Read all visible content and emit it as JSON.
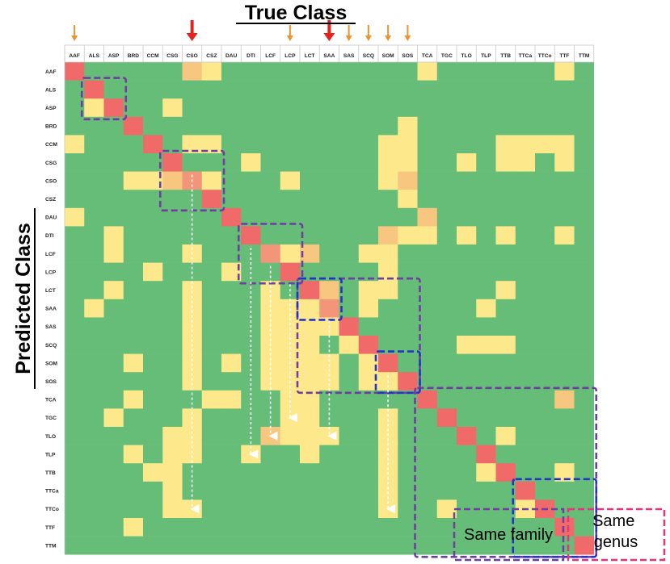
{
  "chart_data": {
    "type": "heatmap",
    "title": "True Class",
    "xlabel": "True Class",
    "ylabel": "Predicted Class",
    "categories": [
      "AAF",
      "ALS",
      "ASP",
      "BRD",
      "CCM",
      "CSG",
      "CSO",
      "CSZ",
      "DAU",
      "DTI",
      "LCF",
      "LCP",
      "LCT",
      "SAA",
      "SAS",
      "SCQ",
      "SOM",
      "SOS",
      "TCA",
      "TGC",
      "TLO",
      "TLP",
      "TTB",
      "TTCa",
      "TTCo",
      "TTF",
      "TTM"
    ],
    "levels": {
      "0": "#66BD77",
      "1": "#FDE98B",
      "2": "#F8C77F",
      "3": "#F39579",
      "4": "#F06A6A"
    },
    "matrix": [
      [
        4,
        0,
        0,
        0,
        0,
        0,
        2,
        1,
        0,
        0,
        0,
        0,
        0,
        0,
        0,
        0,
        0,
        0,
        1,
        0,
        0,
        0,
        0,
        0,
        0,
        1,
        0
      ],
      [
        0,
        4,
        0,
        0,
        0,
        0,
        0,
        0,
        0,
        0,
        0,
        0,
        0,
        0,
        0,
        0,
        0,
        0,
        0,
        0,
        0,
        0,
        0,
        0,
        0,
        0,
        0
      ],
      [
        0,
        1,
        4,
        0,
        0,
        1,
        0,
        0,
        0,
        0,
        0,
        0,
        0,
        0,
        0,
        0,
        0,
        0,
        0,
        0,
        0,
        0,
        0,
        0,
        0,
        0,
        0
      ],
      [
        0,
        0,
        0,
        4,
        0,
        0,
        0,
        0,
        0,
        0,
        0,
        0,
        0,
        0,
        0,
        0,
        0,
        1,
        0,
        0,
        0,
        0,
        0,
        0,
        0,
        0,
        0
      ],
      [
        1,
        0,
        0,
        0,
        4,
        0,
        1,
        1,
        0,
        0,
        0,
        0,
        0,
        0,
        0,
        0,
        1,
        1,
        0,
        0,
        0,
        0,
        1,
        1,
        1,
        1,
        0
      ],
      [
        0,
        0,
        0,
        0,
        0,
        4,
        0,
        0,
        0,
        1,
        0,
        0,
        0,
        0,
        0,
        0,
        1,
        1,
        0,
        0,
        1,
        0,
        1,
        1,
        0,
        1,
        0
      ],
      [
        0,
        0,
        0,
        1,
        1,
        2,
        3,
        1,
        0,
        0,
        0,
        1,
        0,
        0,
        0,
        0,
        1,
        2,
        0,
        0,
        0,
        0,
        0,
        0,
        0,
        0,
        0
      ],
      [
        0,
        0,
        0,
        0,
        0,
        0,
        0,
        4,
        0,
        0,
        0,
        0,
        0,
        0,
        0,
        0,
        0,
        1,
        0,
        0,
        0,
        0,
        0,
        0,
        0,
        0,
        0
      ],
      [
        1,
        0,
        0,
        0,
        0,
        0,
        0,
        0,
        4,
        0,
        0,
        0,
        0,
        0,
        0,
        0,
        0,
        0,
        2,
        0,
        0,
        0,
        0,
        0,
        0,
        0,
        0
      ],
      [
        0,
        0,
        1,
        0,
        0,
        0,
        0,
        0,
        0,
        4,
        0,
        0,
        0,
        0,
        0,
        0,
        2,
        1,
        1,
        0,
        1,
        0,
        1,
        0,
        0,
        1,
        0
      ],
      [
        0,
        0,
        1,
        0,
        0,
        0,
        1,
        0,
        0,
        0,
        3,
        1,
        2,
        0,
        0,
        1,
        1,
        0,
        0,
        0,
        0,
        0,
        0,
        0,
        0,
        0,
        0
      ],
      [
        0,
        0,
        0,
        0,
        1,
        0,
        0,
        0,
        1,
        0,
        0,
        4,
        0,
        0,
        0,
        0,
        1,
        0,
        0,
        0,
        0,
        0,
        0,
        0,
        0,
        0,
        0
      ],
      [
        0,
        0,
        1,
        0,
        0,
        0,
        1,
        0,
        0,
        0,
        1,
        0,
        4,
        2,
        0,
        1,
        1,
        0,
        0,
        0,
        0,
        0,
        1,
        0,
        0,
        0,
        0
      ],
      [
        0,
        1,
        0,
        0,
        0,
        0,
        1,
        0,
        0,
        0,
        1,
        1,
        1,
        3,
        0,
        1,
        0,
        0,
        0,
        0,
        0,
        1,
        0,
        0,
        0,
        0,
        0
      ],
      [
        0,
        0,
        0,
        0,
        0,
        0,
        1,
        0,
        0,
        0,
        1,
        1,
        1,
        1,
        4,
        0,
        0,
        0,
        0,
        0,
        0,
        0,
        0,
        0,
        0,
        0,
        0
      ],
      [
        0,
        0,
        0,
        0,
        0,
        0,
        1,
        0,
        0,
        0,
        1,
        1,
        1,
        0,
        1,
        4,
        0,
        0,
        0,
        0,
        1,
        1,
        1,
        0,
        0,
        0,
        0
      ],
      [
        0,
        0,
        0,
        1,
        0,
        0,
        1,
        0,
        1,
        0,
        1,
        1,
        1,
        1,
        0,
        1,
        4,
        0,
        0,
        0,
        0,
        0,
        0,
        0,
        0,
        0,
        0
      ],
      [
        0,
        0,
        0,
        0,
        0,
        0,
        1,
        0,
        0,
        0,
        1,
        1,
        1,
        1,
        0,
        1,
        1,
        4,
        0,
        0,
        0,
        0,
        0,
        0,
        0,
        0,
        0
      ],
      [
        0,
        0,
        0,
        1,
        0,
        0,
        0,
        1,
        1,
        0,
        0,
        1,
        1,
        0,
        0,
        0,
        0,
        0,
        4,
        0,
        0,
        0,
        0,
        0,
        0,
        2,
        0
      ],
      [
        0,
        0,
        1,
        0,
        0,
        0,
        1,
        0,
        0,
        0,
        0,
        1,
        1,
        0,
        0,
        0,
        1,
        0,
        0,
        4,
        0,
        0,
        0,
        0,
        0,
        0,
        0
      ],
      [
        0,
        0,
        0,
        0,
        0,
        1,
        1,
        0,
        0,
        0,
        2,
        1,
        1,
        1,
        0,
        0,
        1,
        0,
        0,
        0,
        4,
        0,
        1,
        0,
        0,
        0,
        0
      ],
      [
        0,
        0,
        0,
        1,
        0,
        1,
        1,
        0,
        0,
        1,
        0,
        0,
        1,
        0,
        0,
        0,
        1,
        0,
        0,
        0,
        0,
        4,
        0,
        0,
        0,
        0,
        0
      ],
      [
        0,
        0,
        0,
        0,
        1,
        1,
        0,
        0,
        0,
        0,
        0,
        0,
        0,
        0,
        0,
        0,
        1,
        0,
        0,
        0,
        0,
        1,
        4,
        0,
        0,
        1,
        0
      ],
      [
        0,
        0,
        0,
        0,
        0,
        1,
        0,
        0,
        0,
        0,
        0,
        0,
        0,
        0,
        0,
        0,
        1,
        0,
        0,
        0,
        0,
        0,
        0,
        4,
        0,
        0,
        0
      ],
      [
        0,
        0,
        0,
        0,
        0,
        1,
        1,
        0,
        0,
        0,
        0,
        0,
        0,
        0,
        0,
        0,
        1,
        0,
        0,
        1,
        0,
        0,
        0,
        1,
        4,
        0,
        0
      ],
      [
        0,
        0,
        0,
        1,
        0,
        0,
        0,
        0,
        0,
        0,
        0,
        0,
        0,
        0,
        0,
        0,
        0,
        0,
        0,
        0,
        0,
        0,
        0,
        0,
        0,
        4,
        0
      ],
      [
        0,
        0,
        0,
        0,
        0,
        0,
        0,
        0,
        0,
        0,
        0,
        0,
        0,
        0,
        0,
        0,
        0,
        0,
        0,
        0,
        0,
        0,
        0,
        0,
        0,
        0,
        4
      ]
    ],
    "large_arrows_on": [
      "CSO",
      "SAA"
    ],
    "small_arrows_on": [
      "AAF",
      "LCP",
      "SAS",
      "SCQ",
      "SOM",
      "SOS"
    ],
    "family_boxes": [
      [
        "ALS",
        "ASP"
      ],
      [
        "CSG",
        "CSZ"
      ],
      [
        "DTI",
        "LCP"
      ],
      [
        "LCT",
        "SOS"
      ],
      [
        "TCA",
        "TTM"
      ]
    ],
    "genus_boxes": [
      [
        "LCT",
        "SAA"
      ],
      [
        "SOM",
        "SOS"
      ],
      [
        "TTCa",
        "TTM"
      ]
    ],
    "dashed_arrows": [
      [
        "CSO",
        "CSG",
        "TTCo"
      ],
      [
        "DTI",
        "DTI",
        "TLP"
      ],
      [
        "LCF",
        "LCF",
        "TLO"
      ],
      [
        "LCP",
        "LCP",
        "TGC"
      ],
      [
        "SAA",
        "SAA",
        "TLO"
      ],
      [
        "SOM",
        "SOM",
        "TTCo"
      ]
    ],
    "legend": {
      "family": "Same family",
      "genus": "Same genus",
      "family_color": "#6E3FA0",
      "genus_color": "#2433C8",
      "legend_genus_color": "#E8337A",
      "large_arrow_color": "#E5221B",
      "small_arrow_color": "#F0922E"
    }
  }
}
